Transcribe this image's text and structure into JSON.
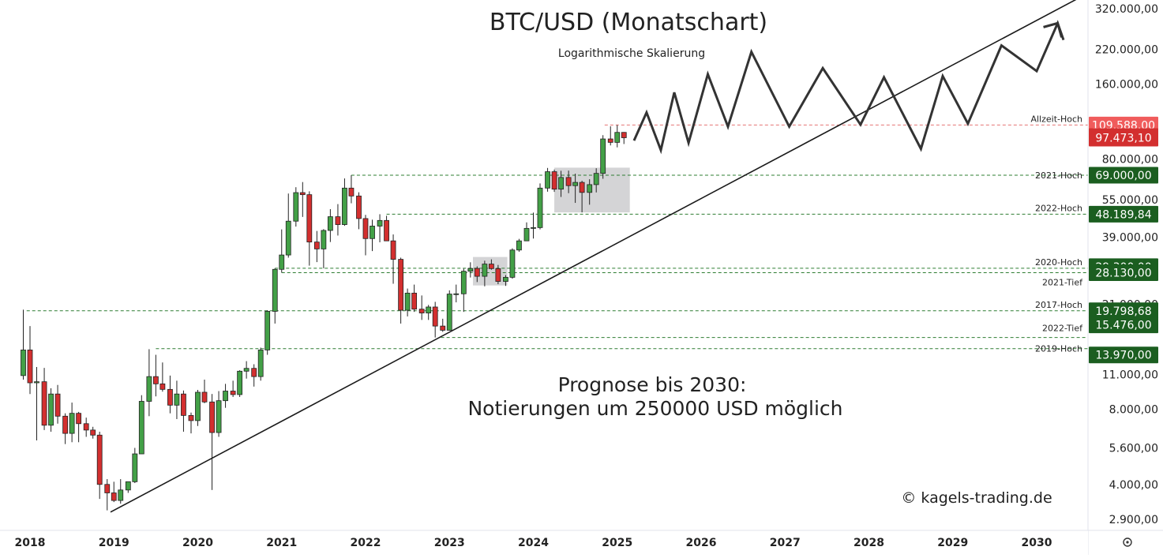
{
  "chart_data": {
    "type": "candlestick",
    "title": "BTC/USD (Monatschart)",
    "subtitle": "Logarithmische Skalierung",
    "annotation_lines": [
      "Prognose bis 2030:",
      "Notierungen um 250000 USD möglich"
    ],
    "watermark": "© kagels-trading.de",
    "y_scale": "log",
    "ylim": [
      2600,
      360000
    ],
    "xlim": [
      2018.0,
      2030.6
    ],
    "y_ticks": [
      {
        "value": 320000,
        "label": "320.000,00"
      },
      {
        "value": 220000,
        "label": "220.000,00"
      },
      {
        "value": 160000,
        "label": "160.000,00"
      },
      {
        "value": 80000,
        "label": "80.000,00"
      },
      {
        "value": 55000,
        "label": "55.000,00"
      },
      {
        "value": 39000,
        "label": "39.000,00"
      },
      {
        "value": 21000,
        "label": "21.000,00"
      },
      {
        "value": 11000,
        "label": "11.000,00"
      },
      {
        "value": 8000,
        "label": "8.000,00"
      },
      {
        "value": 5600,
        "label": "5.600,00"
      },
      {
        "value": 4000,
        "label": "4.000,00"
      },
      {
        "value": 2900,
        "label": "2.900,00"
      }
    ],
    "x_ticks": [
      {
        "value": 2018,
        "label": "2018"
      },
      {
        "value": 2019,
        "label": "2019"
      },
      {
        "value": 2020,
        "label": "2020"
      },
      {
        "value": 2021,
        "label": "2021"
      },
      {
        "value": 2022,
        "label": "2022"
      },
      {
        "value": 2023,
        "label": "2023"
      },
      {
        "value": 2024,
        "label": "2024"
      },
      {
        "value": 2025,
        "label": "2025"
      },
      {
        "value": 2026,
        "label": "2026"
      },
      {
        "value": 2027,
        "label": "2027"
      },
      {
        "value": 2028,
        "label": "2028"
      },
      {
        "value": 2029,
        "label": "2029"
      },
      {
        "value": 2030,
        "label": "2030"
      }
    ],
    "levels": [
      {
        "name": "Allzeit-Hoch",
        "value": 109588,
        "label": "109.588,00",
        "color": "#f05c5c",
        "start": 2024.85
      },
      {
        "name": "2021-Hoch",
        "value": 69000,
        "label": "69.000,00",
        "color": "#1b5e20",
        "start": 2021.83
      },
      {
        "name": "2022-Hoch",
        "value": 48189.84,
        "label": "48.189,84",
        "color": "#1b5e20",
        "start": 2022.25
      },
      {
        "name": "2020-Hoch",
        "value": 29300,
        "label": "29.300,00",
        "color": "#1b5e20",
        "start": 2020.92
      },
      {
        "name": "2021-Tief",
        "value": 28130,
        "label": "28.130,00",
        "color": "#1b5e20",
        "start": 2021.0
      },
      {
        "name": "2017-Hoch",
        "value": 19798.68,
        "label": "19.798,68",
        "color": "#1b5e20",
        "start": 2017.96
      },
      {
        "name": "2022-Tief",
        "value": 15476,
        "label": "15.476,00",
        "color": "#1b5e20",
        "start": 2022.9
      },
      {
        "name": "2019-Hoch",
        "value": 13970,
        "label": "13.970,00",
        "color": "#1b5e20",
        "start": 2019.5
      }
    ],
    "current_price": {
      "value": 97473.1,
      "label": "97.473,10",
      "color": "#d32f2f"
    },
    "trendline": {
      "points": [
        [
          2018.96,
          3100
        ],
        [
          2030.55,
          360000
        ]
      ]
    },
    "forecast_path": [
      [
        2025.2,
        95000
      ],
      [
        2025.35,
        123000
      ],
      [
        2025.52,
        87000
      ],
      [
        2025.68,
        148000
      ],
      [
        2025.85,
        93000
      ],
      [
        2026.08,
        175000
      ],
      [
        2026.32,
        108000
      ],
      [
        2026.6,
        215000
      ],
      [
        2027.05,
        108000
      ],
      [
        2027.45,
        185000
      ],
      [
        2027.9,
        110000
      ],
      [
        2028.18,
        170000
      ],
      [
        2028.62,
        88000
      ],
      [
        2028.88,
        172000
      ],
      [
        2029.18,
        111000
      ],
      [
        2029.58,
        228000
      ],
      [
        2030.0,
        180000
      ],
      [
        2030.25,
        280000
      ],
      [
        2030.32,
        240000
      ]
    ],
    "boxes": [
      {
        "x0": 2024.25,
        "x1": 2025.15,
        "y0": 49000,
        "y1": 74000
      },
      {
        "x0": 2023.28,
        "x1": 2023.69,
        "y0": 25000,
        "y1": 32500
      }
    ],
    "candles": [
      [
        2017.92,
        10900,
        20000,
        10500,
        13800
      ],
      [
        2018.0,
        13800,
        17200,
        9200,
        10200
      ],
      [
        2018.08,
        10200,
        11800,
        6000,
        10300
      ],
      [
        2018.17,
        10300,
        11700,
        6600,
        6900
      ],
      [
        2018.25,
        6900,
        9700,
        6500,
        9200
      ],
      [
        2018.33,
        9200,
        10000,
        7000,
        7500
      ],
      [
        2018.42,
        7500,
        7700,
        5800,
        6400
      ],
      [
        2018.5,
        6400,
        8500,
        5900,
        7700
      ],
      [
        2018.58,
        7700,
        7800,
        5900,
        7000
      ],
      [
        2018.67,
        7000,
        7400,
        6200,
        6600
      ],
      [
        2018.75,
        6600,
        6800,
        6100,
        6300
      ],
      [
        2018.83,
        6300,
        6500,
        3500,
        4000
      ],
      [
        2018.92,
        4000,
        4200,
        3150,
        3700
      ],
      [
        2019.0,
        3700,
        4100,
        3400,
        3450
      ],
      [
        2019.08,
        3450,
        4200,
        3350,
        3800
      ],
      [
        2019.17,
        3800,
        4100,
        3700,
        4100
      ],
      [
        2019.25,
        4100,
        5600,
        4050,
        5300
      ],
      [
        2019.33,
        5300,
        9100,
        5300,
        8600
      ],
      [
        2019.42,
        8600,
        13900,
        7500,
        10800
      ],
      [
        2019.5,
        10800,
        13200,
        9000,
        10100
      ],
      [
        2019.58,
        10100,
        12300,
        9400,
        9600
      ],
      [
        2019.67,
        9600,
        10900,
        7700,
        8300
      ],
      [
        2019.75,
        8300,
        10400,
        7300,
        9200
      ],
      [
        2019.83,
        9200,
        9500,
        6500,
        7550
      ],
      [
        2019.92,
        7550,
        7750,
        6400,
        7200
      ],
      [
        2020.0,
        7200,
        9550,
        6850,
        9350
      ],
      [
        2020.08,
        9350,
        10500,
        8450,
        8550
      ],
      [
        2020.17,
        8550,
        9200,
        3800,
        6450
      ],
      [
        2020.25,
        6450,
        9450,
        6200,
        8650
      ],
      [
        2020.33,
        8650,
        10100,
        8100,
        9450
      ],
      [
        2020.42,
        9450,
        10400,
        8950,
        9150
      ],
      [
        2020.5,
        9150,
        11450,
        8950,
        11350
      ],
      [
        2020.58,
        11350,
        12450,
        10600,
        11650
      ],
      [
        2020.67,
        11650,
        12100,
        9850,
        10800
      ],
      [
        2020.75,
        10800,
        14100,
        10400,
        13800
      ],
      [
        2020.83,
        13800,
        19900,
        13200,
        19700
      ],
      [
        2020.92,
        19700,
        29300,
        17600,
        29000
      ],
      [
        2021.0,
        29000,
        41900,
        28130,
        33100
      ],
      [
        2021.08,
        33100,
        58300,
        32300,
        45200
      ],
      [
        2021.17,
        45200,
        61800,
        43000,
        58800
      ],
      [
        2021.25,
        58800,
        64800,
        47000,
        57700
      ],
      [
        2021.33,
        57700,
        59500,
        30000,
        37300
      ],
      [
        2021.42,
        37300,
        41300,
        31000,
        35000
      ],
      [
        2021.5,
        35000,
        42000,
        29300,
        41500
      ],
      [
        2021.58,
        41500,
        50500,
        37300,
        47100
      ],
      [
        2021.67,
        47100,
        52900,
        39600,
        43800
      ],
      [
        2021.75,
        43800,
        67000,
        43300,
        61300
      ],
      [
        2021.83,
        61300,
        69000,
        53300,
        57000
      ],
      [
        2021.92,
        57000,
        59000,
        42000,
        46300
      ],
      [
        2022.0,
        46300,
        47900,
        33000,
        38500
      ],
      [
        2022.08,
        38500,
        45800,
        34300,
        43200
      ],
      [
        2022.17,
        43200,
        48189,
        37200,
        45500
      ],
      [
        2022.25,
        45500,
        47500,
        37700,
        37700
      ],
      [
        2022.33,
        37700,
        40000,
        25400,
        31800
      ],
      [
        2022.42,
        31800,
        32300,
        17600,
        19900
      ],
      [
        2022.5,
        19900,
        24300,
        18800,
        23300
      ],
      [
        2022.58,
        23300,
        25200,
        19600,
        20100
      ],
      [
        2022.67,
        20100,
        22800,
        18200,
        19400
      ],
      [
        2022.75,
        19400,
        20900,
        18200,
        20500
      ],
      [
        2022.83,
        20500,
        21500,
        15476,
        17200
      ],
      [
        2022.92,
        17200,
        18400,
        16300,
        16550
      ],
      [
        2023.0,
        16550,
        23900,
        16500,
        23100
      ],
      [
        2023.08,
        23100,
        25200,
        21400,
        23150
      ],
      [
        2023.17,
        23150,
        29200,
        19600,
        28500
      ],
      [
        2023.25,
        28500,
        30950,
        26900,
        29250
      ],
      [
        2023.33,
        29250,
        29800,
        25800,
        27200
      ],
      [
        2023.42,
        27200,
        31400,
        24800,
        30450
      ],
      [
        2023.5,
        30450,
        31800,
        28900,
        29200
      ],
      [
        2023.58,
        29200,
        30200,
        25300,
        25950
      ],
      [
        2023.67,
        25950,
        27500,
        24900,
        26950
      ],
      [
        2023.75,
        26950,
        35200,
        26600,
        34650
      ],
      [
        2023.83,
        34650,
        38400,
        34100,
        37700
      ],
      [
        2023.92,
        37700,
        44700,
        37600,
        42300
      ],
      [
        2024.0,
        42300,
        48900,
        38500,
        42600
      ],
      [
        2024.08,
        42600,
        64000,
        41900,
        61300
      ],
      [
        2024.17,
        61300,
        73800,
        59300,
        71300
      ],
      [
        2024.25,
        71300,
        72700,
        59200,
        60700
      ],
      [
        2024.33,
        60700,
        71900,
        56500,
        67600
      ],
      [
        2024.42,
        67600,
        72000,
        58500,
        62700
      ],
      [
        2024.5,
        62700,
        70000,
        53500,
        64600
      ],
      [
        2024.58,
        64600,
        65600,
        49000,
        58900
      ],
      [
        2024.67,
        58900,
        66500,
        52600,
        63300
      ],
      [
        2024.75,
        63300,
        73600,
        58900,
        70200
      ],
      [
        2024.83,
        70200,
        99800,
        66800,
        96400
      ],
      [
        2024.92,
        96400,
        108300,
        90800,
        93400
      ],
      [
        2025.0,
        93400,
        109588,
        89200,
        102400
      ],
      [
        2025.08,
        102400,
        102700,
        92000,
        97473
      ]
    ]
  }
}
